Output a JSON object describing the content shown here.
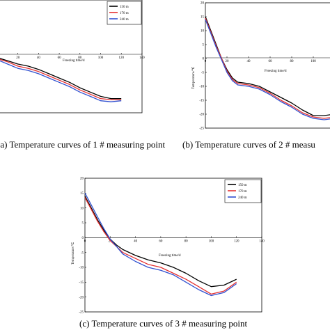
{
  "chart_data": [
    {
      "type": "line",
      "caption": "(a) Temperature curves of 1 # measuring point",
      "xlabel": "Freezing time/d",
      "ylabel": "",
      "x_ticks": [
        20,
        40,
        60,
        80,
        100,
        120,
        140
      ],
      "y_ticks": [],
      "legend": "top-right",
      "series": [
        {
          "name": "150 m",
          "color": "#000000",
          "x": [
            0,
            10,
            20,
            30,
            40,
            50,
            60,
            70,
            80,
            90,
            100,
            110,
            120
          ],
          "y": [
            -1.5,
            -3.0,
            -4.5,
            -5.5,
            -7.0,
            -9.0,
            -11.0,
            -13.0,
            -15.5,
            -17.5,
            -19.5,
            -20.5,
            -20.5
          ]
        },
        {
          "name": "170 m",
          "color": "#e53030",
          "x": [
            0,
            10,
            20,
            30,
            40,
            50,
            60,
            70,
            80,
            90,
            100,
            110,
            120
          ],
          "y": [
            -2.0,
            -3.5,
            -5.5,
            -6.5,
            -8.0,
            -10.0,
            -12.0,
            -14.0,
            -16.5,
            -18.5,
            -20.5,
            -21.0,
            -21.0
          ]
        },
        {
          "name": "240 m",
          "color": "#3050d0",
          "x": [
            0,
            10,
            20,
            30,
            40,
            50,
            60,
            70,
            80,
            90,
            100,
            110,
            120
          ],
          "y": [
            -2.5,
            -4.5,
            -6.5,
            -7.5,
            -9.0,
            -11.0,
            -13.0,
            -15.0,
            -17.5,
            -19.5,
            -21.5,
            -22.0,
            -21.5
          ]
        }
      ]
    },
    {
      "type": "line",
      "caption": "(b) Temperature curves of 2 # measu",
      "xlabel": "Freezing time/d",
      "ylabel": "Temperature/℃",
      "x_ticks": [
        0,
        20,
        40,
        60,
        80,
        100
      ],
      "y_ticks": [
        20,
        15,
        10,
        5,
        0,
        -5,
        -10,
        -15,
        -20,
        -25
      ],
      "xlim": [
        0,
        120
      ],
      "ylim": [
        -25,
        20
      ],
      "series": [
        {
          "name": "150 m",
          "color": "#000000",
          "x": [
            0,
            5,
            10,
            15,
            20,
            25,
            30,
            40,
            50,
            60,
            70,
            80,
            90,
            100,
            110,
            120
          ],
          "y": [
            15,
            10,
            5,
            0,
            -4,
            -7,
            -8.5,
            -9,
            -10,
            -12,
            -14,
            -16,
            -18.5,
            -20.5,
            -20.5,
            -20
          ]
        },
        {
          "name": "170 m",
          "color": "#e53030",
          "x": [
            0,
            5,
            10,
            15,
            20,
            25,
            30,
            40,
            50,
            60,
            70,
            80,
            90,
            100,
            110,
            120
          ],
          "y": [
            14.5,
            9.5,
            4.5,
            0,
            -4.5,
            -7.5,
            -9,
            -9.5,
            -10.5,
            -12.5,
            -15,
            -17,
            -19.5,
            -21,
            -21.5,
            -21
          ]
        },
        {
          "name": "240 m",
          "color": "#3050d0",
          "x": [
            0,
            5,
            10,
            15,
            20,
            25,
            30,
            40,
            50,
            60,
            70,
            80,
            90,
            100,
            110,
            120
          ],
          "y": [
            14,
            9,
            4,
            -0.5,
            -5,
            -8,
            -9.5,
            -10,
            -11,
            -13,
            -15.5,
            -17.5,
            -20,
            -21.5,
            -22,
            -21.5
          ]
        }
      ]
    },
    {
      "type": "line",
      "caption": "(c) Temperature curves of 3 # measuring point",
      "xlabel": "Freezing time/d",
      "ylabel": "Temperature/℃",
      "x_ticks": [
        0,
        20,
        40,
        60,
        80,
        100,
        120,
        140
      ],
      "y_ticks": [
        20,
        15,
        10,
        5,
        0,
        -5,
        -10,
        -15,
        -20,
        -25
      ],
      "xlim": [
        0,
        140
      ],
      "ylim": [
        -25,
        20
      ],
      "legend": "top-right",
      "series": [
        {
          "name": "150 m",
          "color": "#000000",
          "x": [
            0,
            5,
            10,
            15,
            20,
            25,
            30,
            40,
            50,
            60,
            70,
            80,
            90,
            100,
            110,
            120
          ],
          "y": [
            14,
            10,
            6,
            2.5,
            -0.5,
            -2.5,
            -4,
            -6,
            -7.5,
            -8.5,
            -10,
            -12,
            -14.5,
            -16.5,
            -16,
            -14
          ]
        },
        {
          "name": "170 m",
          "color": "#e53030",
          "x": [
            0,
            5,
            10,
            15,
            20,
            25,
            30,
            40,
            50,
            60,
            70,
            80,
            90,
            100,
            110,
            120
          ],
          "y": [
            13.5,
            9.5,
            5.5,
            2,
            -1,
            -3,
            -5,
            -7,
            -9,
            -10,
            -12,
            -14,
            -16.5,
            -19,
            -18,
            -15
          ]
        },
        {
          "name": "240 m",
          "color": "#3050d0",
          "x": [
            0,
            5,
            10,
            15,
            20,
            25,
            30,
            40,
            50,
            60,
            70,
            80,
            90,
            100,
            110,
            120
          ],
          "y": [
            15,
            11,
            7,
            3,
            -0.5,
            -3,
            -5.5,
            -8,
            -10,
            -11,
            -12.5,
            -15,
            -17.5,
            -19.5,
            -18.5,
            -15.5
          ]
        }
      ]
    }
  ]
}
